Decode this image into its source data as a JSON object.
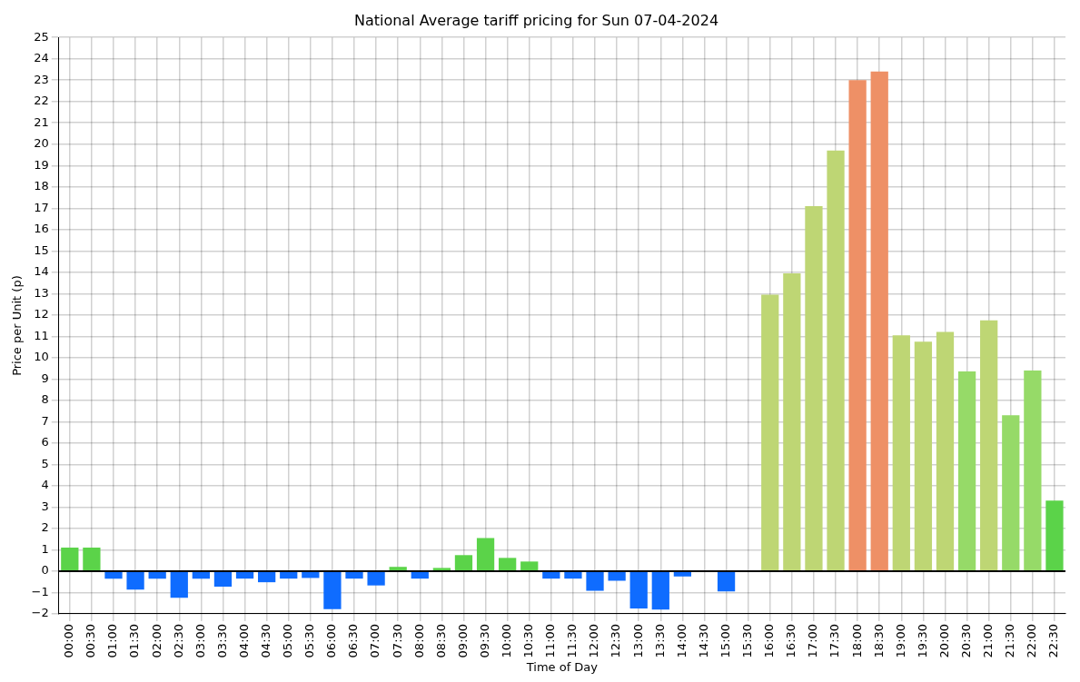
{
  "chart_data": {
    "type": "bar",
    "title": "National Average tariff pricing for Sun 07-04-2024",
    "xlabel": "Time of Day",
    "ylabel": "Price per Unit (p)",
    "categories": [
      "00:00",
      "00:30",
      "01:00",
      "01:30",
      "02:00",
      "02:30",
      "03:00",
      "03:30",
      "04:00",
      "04:30",
      "05:00",
      "05:30",
      "06:00",
      "06:30",
      "07:00",
      "07:30",
      "08:00",
      "08:30",
      "09:00",
      "09:30",
      "10:00",
      "10:30",
      "11:00",
      "11:30",
      "12:00",
      "12:30",
      "13:00",
      "13:30",
      "14:00",
      "14:30",
      "15:00",
      "15:30",
      "16:00",
      "16:30",
      "17:00",
      "17:30",
      "18:00",
      "18:30",
      "19:00",
      "19:30",
      "20:00",
      "20:30",
      "21:00",
      "21:30",
      "22:00",
      "22:30"
    ],
    "values": [
      1.1,
      1.1,
      -0.35,
      -0.87,
      -0.35,
      -1.25,
      -0.35,
      -0.73,
      -0.35,
      -0.52,
      -0.35,
      -0.32,
      -1.78,
      -0.35,
      -0.67,
      0.2,
      -0.35,
      0.15,
      0.75,
      1.55,
      0.62,
      0.45,
      -0.35,
      -0.35,
      -0.92,
      -0.45,
      -1.75,
      -1.8,
      -0.25,
      0,
      -0.95,
      0,
      12.95,
      13.95,
      17.1,
      19.7,
      23.0,
      23.4,
      11.05,
      10.75,
      11.2,
      9.35,
      11.75,
      7.3,
      9.4,
      3.3
    ],
    "colors": [
      "#5bd349",
      "#5bd349",
      "#0f6cff",
      "#0f6cff",
      "#0f6cff",
      "#0f6cff",
      "#0f6cff",
      "#0f6cff",
      "#0f6cff",
      "#0f6cff",
      "#0f6cff",
      "#0f6cff",
      "#0f6cff",
      "#0f6cff",
      "#0f6cff",
      "#5bd349",
      "#0f6cff",
      "#5bd349",
      "#5bd349",
      "#5bd349",
      "#5bd349",
      "#5bd349",
      "#0f6cff",
      "#0f6cff",
      "#0f6cff",
      "#0f6cff",
      "#0f6cff",
      "#0f6cff",
      "#0f6cff",
      "#0f6cff",
      "#0f6cff",
      "#0f6cff",
      "#bed674",
      "#bed674",
      "#bed674",
      "#bed674",
      "#ee9066",
      "#ee9066",
      "#bed674",
      "#bed674",
      "#bed674",
      "#96da68",
      "#bed674",
      "#96da68",
      "#96da68",
      "#5bd349"
    ],
    "ylim": [
      -2,
      25
    ],
    "yticks": [
      -2,
      -1,
      0,
      1,
      2,
      3,
      4,
      5,
      6,
      7,
      8,
      9,
      10,
      11,
      12,
      13,
      14,
      15,
      16,
      17,
      18,
      19,
      20,
      21,
      22,
      23,
      24,
      25
    ],
    "grid": true,
    "ref_lines": [
      {
        "axis": "y",
        "value": 0,
        "color": "#000000"
      }
    ]
  }
}
